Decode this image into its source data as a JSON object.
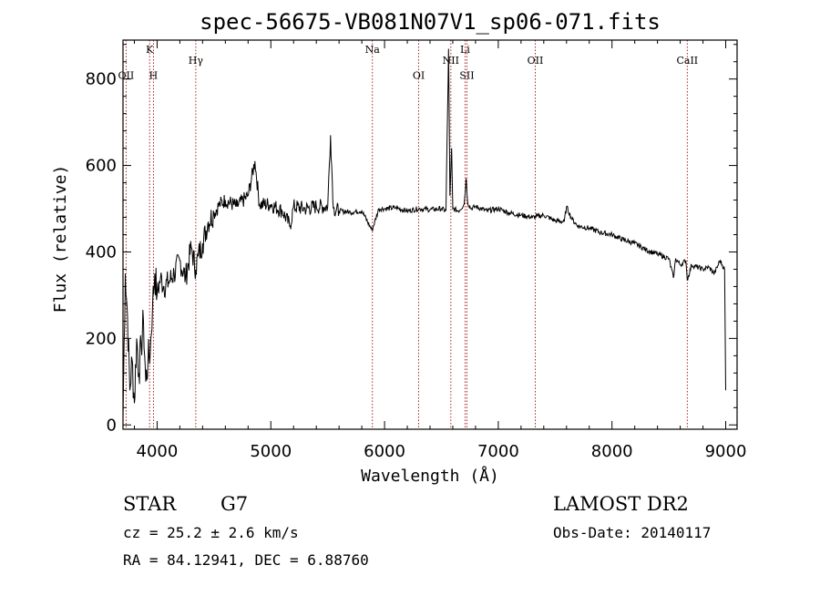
{
  "title": "spec-56675-VB081N07V1_sp06-071.fits",
  "chart_data": {
    "type": "line",
    "title": "spec-56675-VB081N07V1_sp06-071.fits",
    "xlabel": "Wavelength (Å)",
    "ylabel": "Flux (relative)",
    "xlim": [
      3700,
      9100
    ],
    "ylim": [
      -10,
      890
    ],
    "x_ticks": [
      4000,
      5000,
      6000,
      7000,
      8000,
      9000
    ],
    "y_ticks": [
      0,
      200,
      400,
      600,
      800
    ],
    "x_tick_labels": [
      "4000",
      "5000",
      "6000",
      "7000",
      "8000",
      "9000"
    ],
    "y_tick_labels": [
      "0",
      "200",
      "400",
      "600",
      "800"
    ],
    "grid": false,
    "series": [
      {
        "color": "#000000",
        "x": [
          3700,
          3720,
          3740,
          3760,
          3780,
          3800,
          3820,
          3840,
          3860,
          3880,
          3900,
          3920,
          3940,
          3960,
          3980,
          4000,
          4030,
          4060,
          4100,
          4150,
          4200,
          4250,
          4300,
          4340,
          4360,
          4400,
          4450,
          4500,
          4550,
          4600,
          4700,
          4800,
          4860,
          4900,
          5000,
          5100,
          5170,
          5200,
          5300,
          5400,
          5500,
          5525,
          5550,
          5600,
          5700,
          5800,
          5890,
          5950,
          6000,
          6100,
          6200,
          6300,
          6400,
          6500,
          6540,
          6563,
          6575,
          6590,
          6600,
          6650,
          6700,
          6717,
          6731,
          6760,
          6800,
          6900,
          7000,
          7100,
          7200,
          7300,
          7400,
          7500,
          7580,
          7600,
          7650,
          7700,
          7800,
          7900,
          8000,
          8100,
          8200,
          8300,
          8400,
          8500,
          8540,
          8560,
          8600,
          8650,
          8662,
          8700,
          8800,
          8850,
          8900,
          8950,
          8990,
          9000
        ],
        "values": [
          20,
          350,
          250,
          80,
          150,
          50,
          200,
          120,
          180,
          240,
          100,
          150,
          170,
          280,
          350,
          300,
          340,
          320,
          330,
          350,
          380,
          340,
          410,
          360,
          390,
          420,
          470,
          490,
          510,
          520,
          505,
          530,
          610,
          510,
          510,
          495,
          460,
          505,
          500,
          505,
          505,
          670,
          500,
          495,
          492,
          495,
          450,
          500,
          500,
          502,
          495,
          500,
          498,
          500,
          495,
          870,
          530,
          640,
          500,
          495,
          510,
          570,
          515,
          500,
          505,
          495,
          500,
          490,
          485,
          480,
          485,
          472,
          470,
          505,
          475,
          460,
          455,
          445,
          440,
          428,
          420,
          405,
          395,
          385,
          340,
          385,
          370,
          380,
          335,
          370,
          360,
          365,
          350,
          380,
          360,
          80
        ]
      }
    ],
    "reference_lines": [
      {
        "label": "OII",
        "x": 3727,
        "label_y": 800
      },
      {
        "label": "K",
        "x": 3934,
        "label_y": 860
      },
      {
        "label": "H",
        "x": 3968,
        "label_y": 800
      },
      {
        "label": "Hγ",
        "x": 4340,
        "label_y": 835
      },
      {
        "label": "Na",
        "x": 5893,
        "label_y": 860
      },
      {
        "label": "OI",
        "x": 6300,
        "label_y": 800
      },
      {
        "label": "NII",
        "x": 6583,
        "label_y": 835
      },
      {
        "label": "Li",
        "x": 6708,
        "label_y": 860
      },
      {
        "label": "SII",
        "x": 6724,
        "label_y": 800
      },
      {
        "label": "OII",
        "x": 7325,
        "label_y": 835
      },
      {
        "label": "CaII",
        "x": 8662,
        "label_y": 835
      }
    ]
  },
  "info": {
    "class": "STAR",
    "subclass": "G7",
    "survey": "LAMOST DR2",
    "redshift": "cz = 25.2 ± 2.6 km/s",
    "obs_date": "Obs-Date: 20140117",
    "coords": "RA =  84.12941, DEC =   6.88760"
  }
}
